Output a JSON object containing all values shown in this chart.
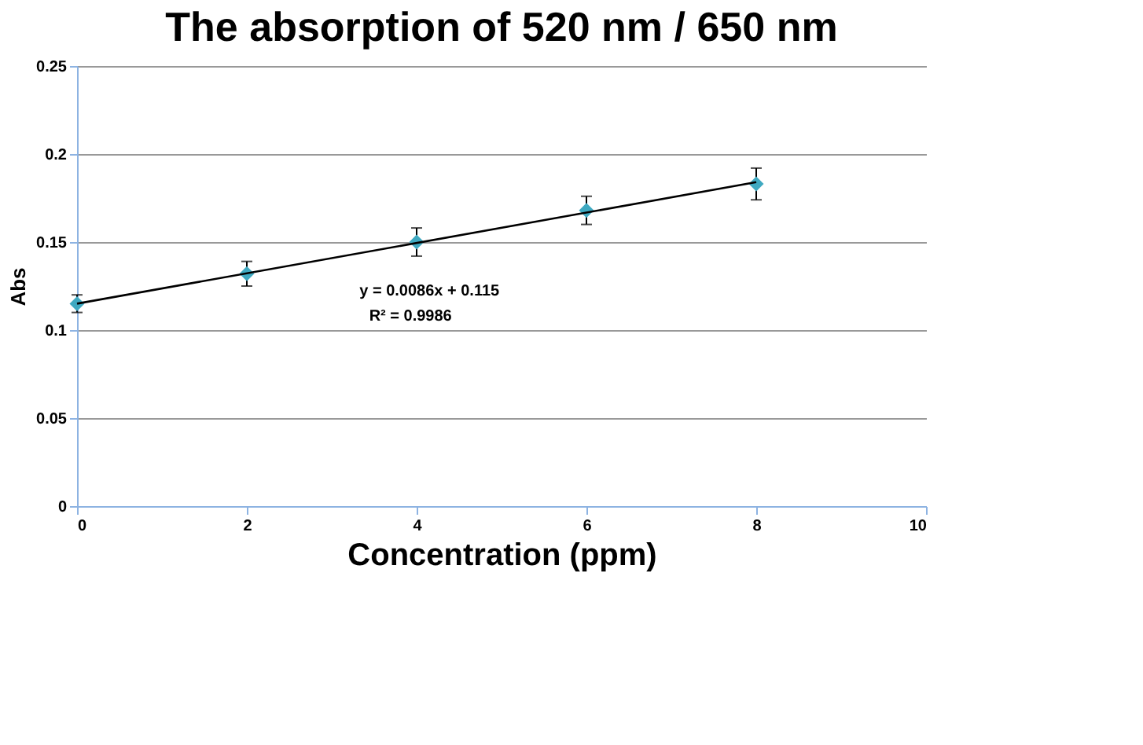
{
  "chart_data": {
    "type": "scatter",
    "title": "The absorption of  520 nm / 650 nm",
    "xlabel": "Concentration (ppm)",
    "ylabel": "Abs",
    "x": [
      0,
      2,
      4,
      6,
      8
    ],
    "series": [
      {
        "type": "scatter",
        "color": "#3fa9c1",
        "marker": "diamond",
        "values": [
          0.115,
          0.132,
          0.15,
          0.168,
          0.183
        ],
        "errors": [
          0.005,
          0.007,
          0.008,
          0.008,
          0.009
        ]
      },
      {
        "type": "line",
        "color": "#000000",
        "x": [
          0,
          8
        ],
        "values": [
          0.115,
          0.184
        ]
      }
    ],
    "xlim": [
      0,
      10
    ],
    "xticks": [
      0,
      2,
      4,
      6,
      8,
      10
    ],
    "ylim": [
      0,
      0.25
    ],
    "yticks": [
      0,
      0.05,
      0.1,
      0.15,
      0.2,
      0.25
    ],
    "grid": "y",
    "annotations": [
      "y = 0.0086x + 0.115",
      "R² = 0.9986"
    ]
  }
}
